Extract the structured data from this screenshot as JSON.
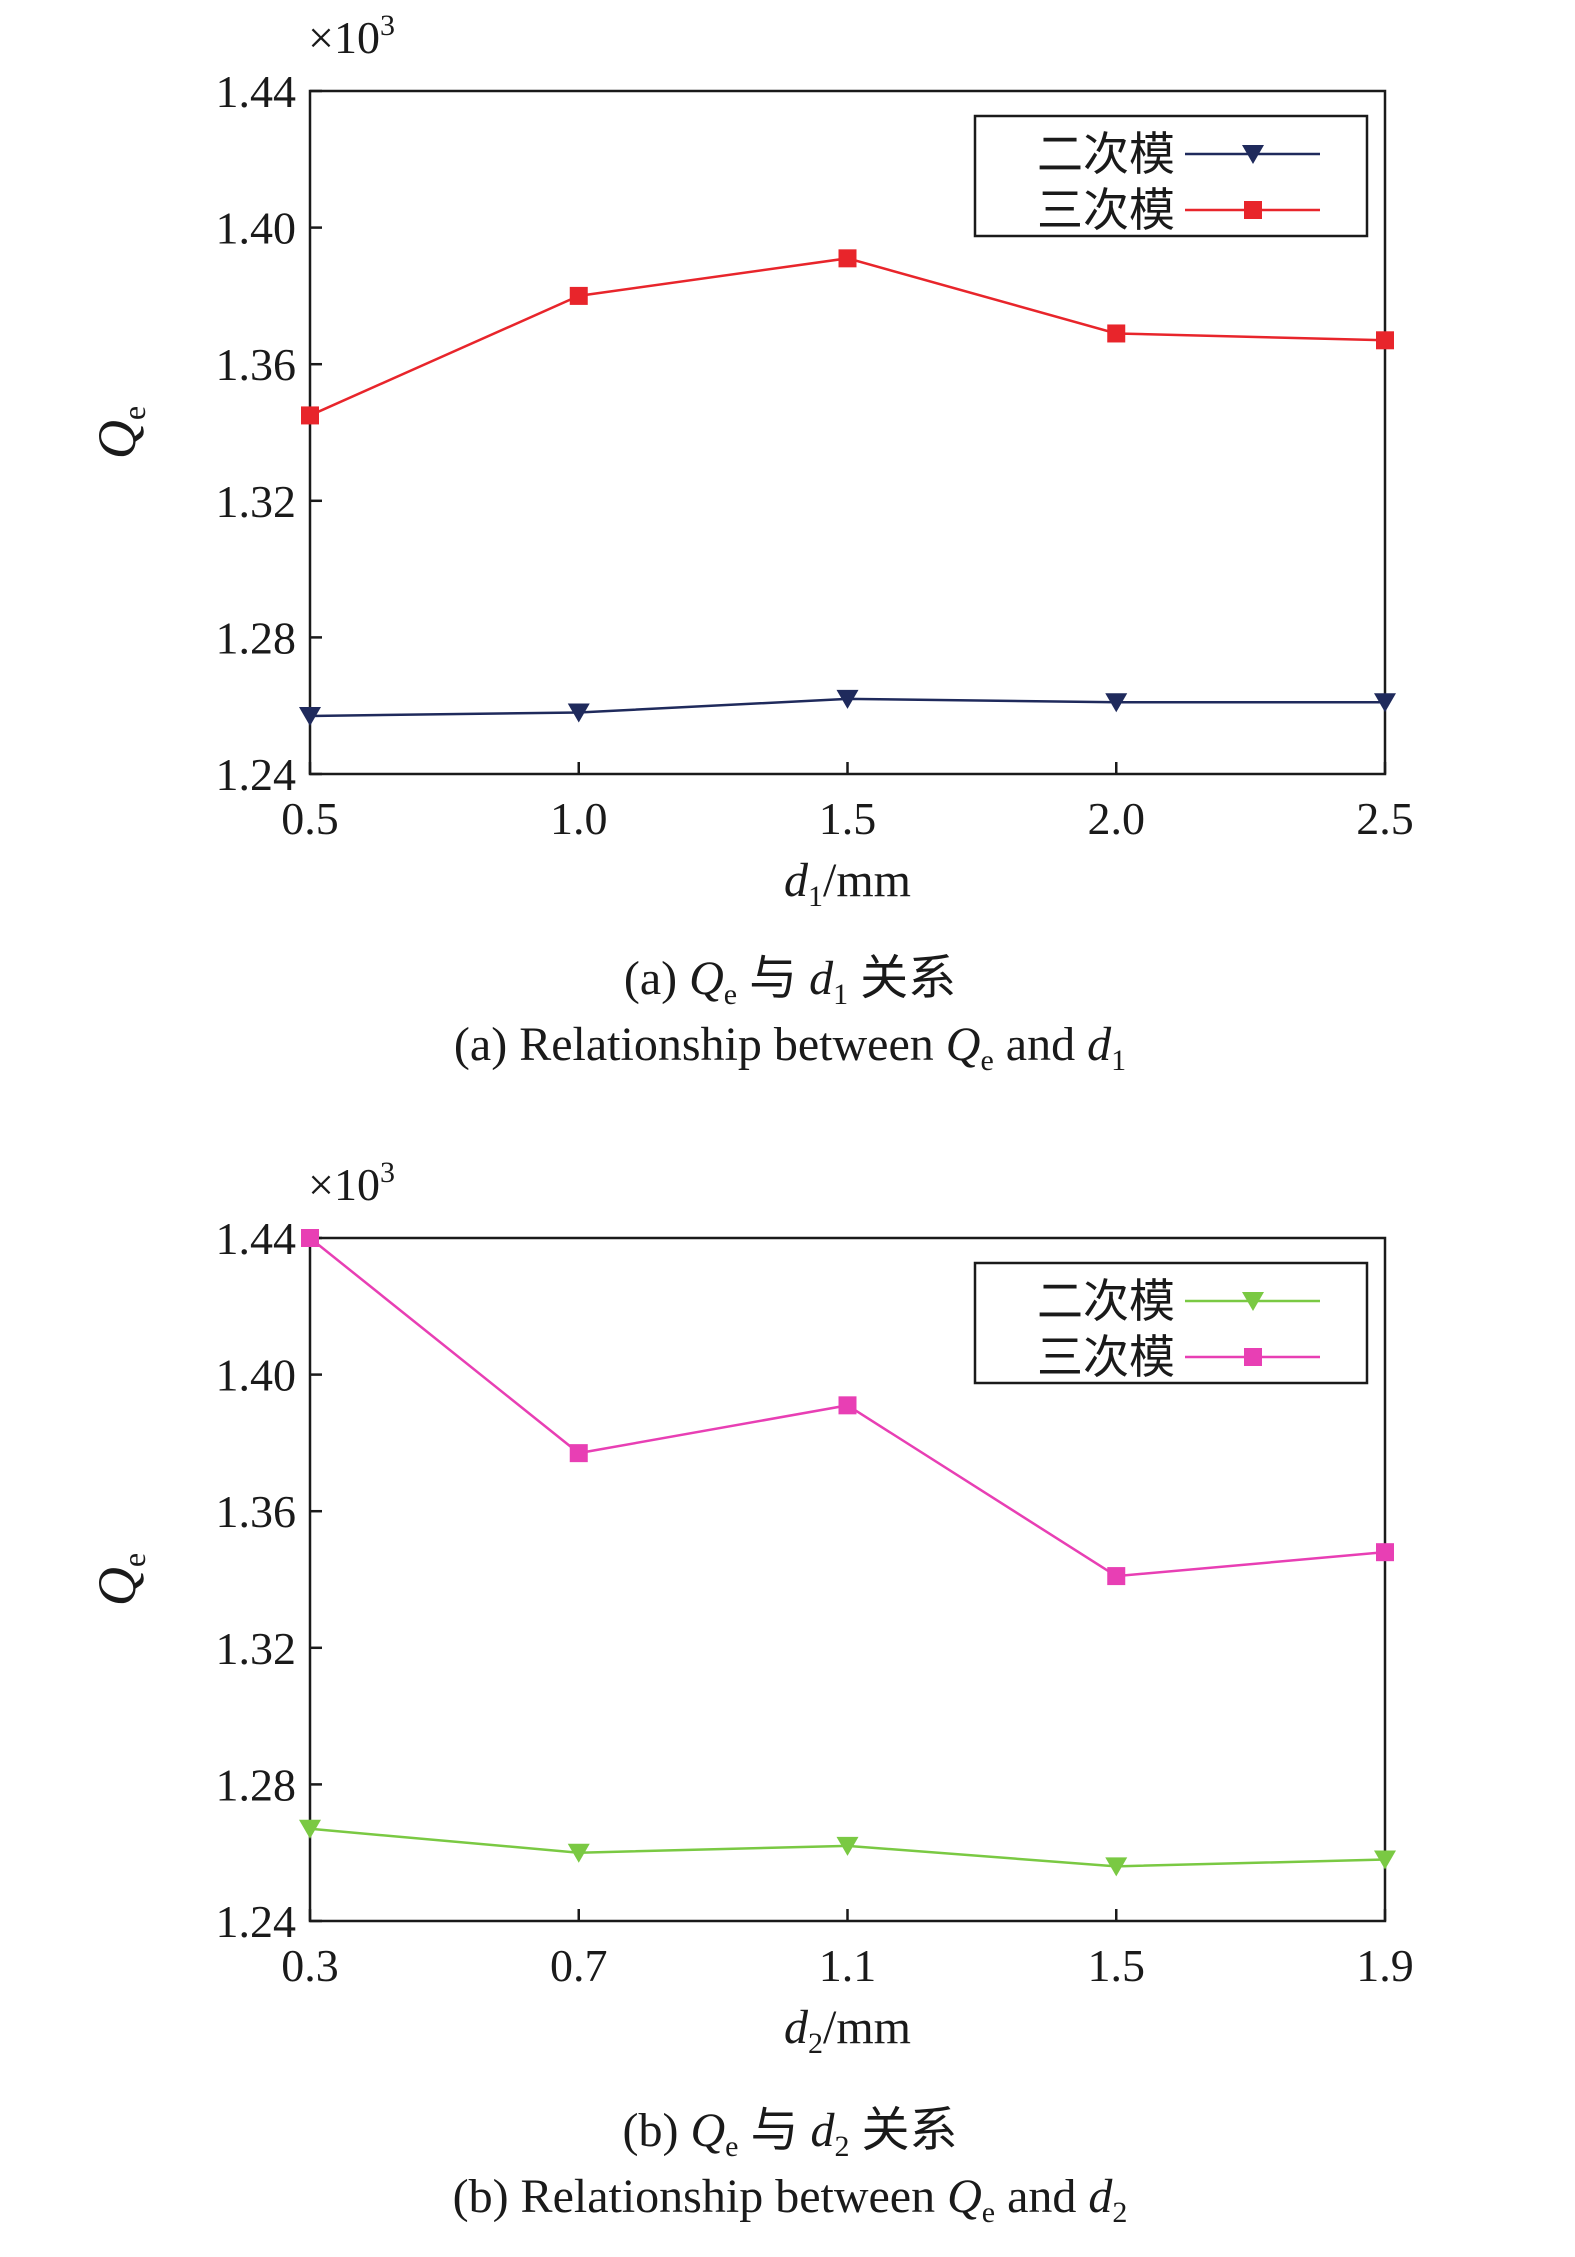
{
  "figure": {
    "panels": [
      {
        "id": "a",
        "caption_cn": {
          "label": "(a)",
          "q": "Q",
          "q_sub": "e",
          "yu": "与",
          "d": "d",
          "d_sub": "1",
          "rel": "关系"
        },
        "caption_en": {
          "text": "(a) Relationship between",
          "q": "Q",
          "q_sub": "e",
          "and": "and",
          "d": "d",
          "d_sub": "1"
        }
      },
      {
        "id": "b",
        "caption_cn": {
          "label": "(b)",
          "q": "Q",
          "q_sub": "e",
          "yu": "与",
          "d": "d",
          "d_sub": "2",
          "rel": "关系"
        },
        "caption_en": {
          "text": "(b) Relationship between",
          "q": "Q",
          "q_sub": "e",
          "and": "and",
          "d": "d",
          "d_sub": "2"
        }
      }
    ]
  },
  "chart_data": [
    {
      "type": "line",
      "x": [
        0.5,
        1.0,
        1.5,
        2.0,
        2.5
      ],
      "x_ticks": [
        "0.5",
        "1.0",
        "1.5",
        "2.0",
        "2.5"
      ],
      "xlim": [
        0.5,
        2.5
      ],
      "xlabel": {
        "var": "d",
        "sub": "1",
        "unit": "/mm"
      },
      "ylabel": {
        "var": "Q",
        "sub": "e"
      },
      "y_multiplier": {
        "base": "×10",
        "exp": "3"
      },
      "ylim": [
        1.24,
        1.44
      ],
      "y_ticks": [
        "1.24",
        "1.28",
        "1.32",
        "1.36",
        "1.40",
        "1.44"
      ],
      "grid": false,
      "legend_position": "top-right",
      "series": [
        {
          "name": "二次模",
          "marker": "triangle-down",
          "color": "#1f2a5c",
          "values": [
            1.257,
            1.258,
            1.262,
            1.261,
            1.261
          ]
        },
        {
          "name": "三次模",
          "marker": "square",
          "color": "#e8252b",
          "values": [
            1.345,
            1.38,
            1.391,
            1.369,
            1.367
          ]
        }
      ]
    },
    {
      "type": "line",
      "x": [
        0.3,
        0.7,
        1.1,
        1.5,
        1.9
      ],
      "x_ticks": [
        "0.3",
        "0.7",
        "1.1",
        "1.5",
        "1.9"
      ],
      "xlim": [
        0.3,
        1.9
      ],
      "xlabel": {
        "var": "d",
        "sub": "2",
        "unit": "/mm"
      },
      "ylabel": {
        "var": "Q",
        "sub": "e"
      },
      "y_multiplier": {
        "base": "×10",
        "exp": "3"
      },
      "ylim": [
        1.24,
        1.44
      ],
      "y_ticks": [
        "1.24",
        "1.28",
        "1.32",
        "1.36",
        "1.40",
        "1.44"
      ],
      "grid": false,
      "legend_position": "top-right",
      "series": [
        {
          "name": "二次模",
          "marker": "triangle-down",
          "color": "#7ac943",
          "values": [
            1.267,
            1.26,
            1.262,
            1.256,
            1.258
          ]
        },
        {
          "name": "三次模",
          "marker": "square",
          "color": "#e83fb4",
          "values": [
            1.44,
            1.377,
            1.391,
            1.341,
            1.348
          ]
        }
      ]
    }
  ]
}
